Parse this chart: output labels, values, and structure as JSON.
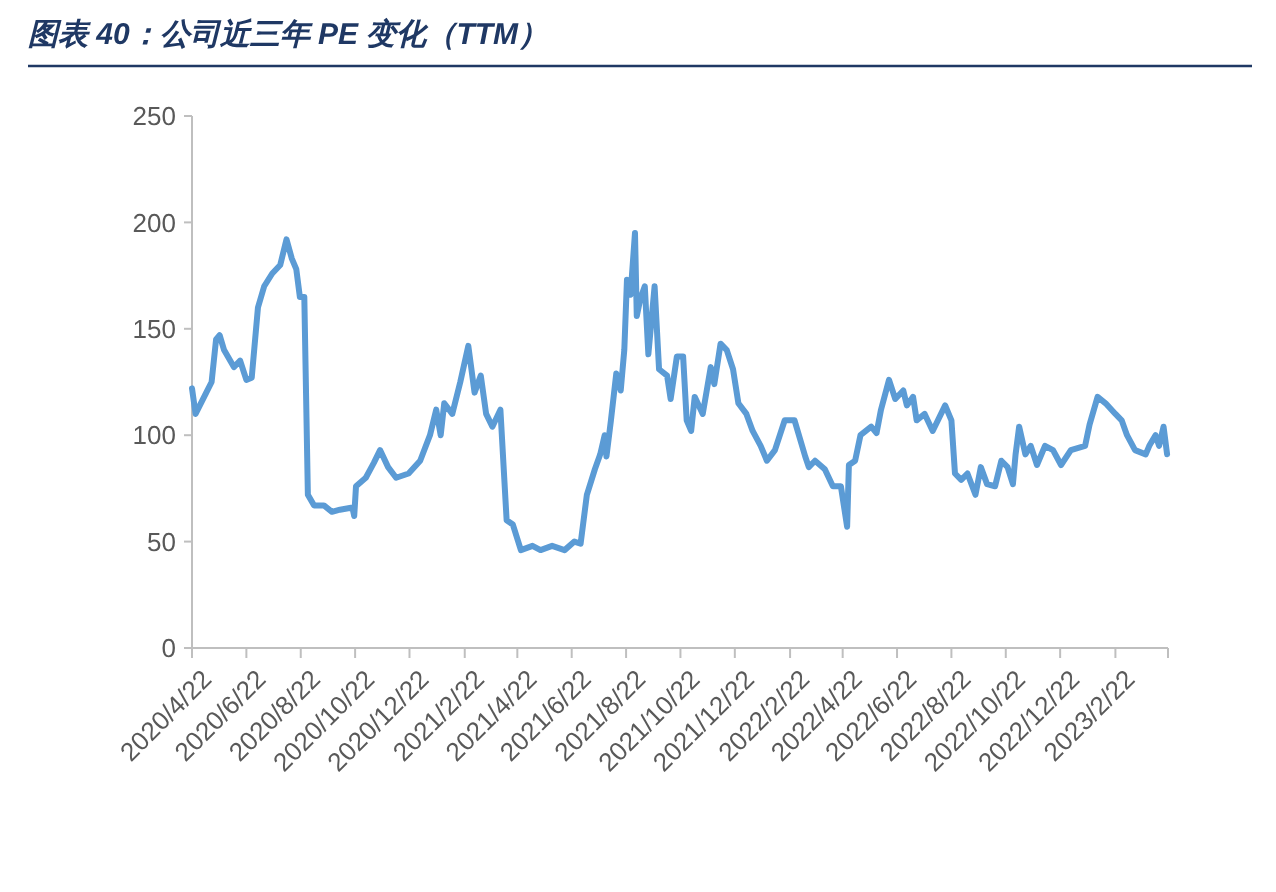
{
  "chart_data": {
    "type": "line",
    "title": "图表 40：公司近三年 PE 变化（TTM）",
    "x": [
      "2020-04-22",
      "2020-04-26",
      "2020-05-08",
      "2020-05-14",
      "2020-05-19",
      "2020-05-23",
      "2020-05-28",
      "2020-06-08",
      "2020-06-15",
      "2020-06-22",
      "2020-06-28",
      "2020-07-05",
      "2020-07-12",
      "2020-07-21",
      "2020-07-30",
      "2020-08-06",
      "2020-08-12",
      "2020-08-17",
      "2020-08-21",
      "2020-08-26",
      "2020-08-30",
      "2020-09-06",
      "2020-09-17",
      "2020-09-26",
      "2020-10-05",
      "2020-10-19",
      "2020-10-21",
      "2020-10-23",
      "2020-11-03",
      "2020-11-12",
      "2020-11-19",
      "2020-11-28",
      "2020-12-07",
      "2020-12-21",
      "2021-01-03",
      "2021-01-14",
      "2021-01-21",
      "2021-01-26",
      "2021-01-30",
      "2021-02-08",
      "2021-02-17",
      "2021-02-26",
      "2021-03-05",
      "2021-03-12",
      "2021-03-18",
      "2021-03-25",
      "2021-04-03",
      "2021-04-10",
      "2021-04-17",
      "2021-04-26",
      "2021-05-09",
      "2021-05-18",
      "2021-05-31",
      "2021-06-14",
      "2021-06-25",
      "2021-07-02",
      "2021-07-09",
      "2021-07-18",
      "2021-07-24",
      "2021-07-29",
      "2021-07-31",
      "2021-08-05",
      "2021-08-11",
      "2021-08-16",
      "2021-08-20",
      "2021-08-23",
      "2021-08-27",
      "2021-09-01",
      "2021-09-03",
      "2021-09-07",
      "2021-09-12",
      "2021-09-16",
      "2021-09-23",
      "2021-09-28",
      "2021-10-07",
      "2021-10-11",
      "2021-10-18",
      "2021-10-25",
      "2021-10-29",
      "2021-11-03",
      "2021-11-07",
      "2021-11-16",
      "2021-11-25",
      "2021-11-29",
      "2021-12-06",
      "2021-12-13",
      "2021-12-20",
      "2021-12-26",
      "2022-01-04",
      "2022-01-11",
      "2022-01-20",
      "2022-01-27",
      "2022-02-05",
      "2022-02-16",
      "2022-02-27",
      "2022-03-11",
      "2022-03-15",
      "2022-03-22",
      "2022-04-02",
      "2022-04-11",
      "2022-04-20",
      "2022-04-27",
      "2022-04-29",
      "2022-05-06",
      "2022-05-12",
      "2022-05-24",
      "2022-05-30",
      "2022-06-04",
      "2022-06-13",
      "2022-06-20",
      "2022-06-29",
      "2022-07-03",
      "2022-07-10",
      "2022-07-14",
      "2022-07-23",
      "2022-08-01",
      "2022-08-15",
      "2022-08-22",
      "2022-08-26",
      "2022-09-02",
      "2022-09-09",
      "2022-09-18",
      "2022-09-24",
      "2022-10-01",
      "2022-10-10",
      "2022-10-17",
      "2022-10-24",
      "2022-10-30",
      "2022-11-02",
      "2022-11-06",
      "2022-11-13",
      "2022-11-19",
      "2022-11-26",
      "2022-12-05",
      "2022-12-14",
      "2022-12-23",
      "2023-01-03",
      "2023-01-19",
      "2023-01-24",
      "2023-02-02",
      "2023-02-11",
      "2023-02-22",
      "2023-03-01",
      "2023-03-07",
      "2023-03-16",
      "2023-03-28",
      "2023-04-01",
      "2023-04-08",
      "2023-04-12",
      "2023-04-17",
      "2023-04-21"
    ],
    "series": [
      {
        "color": "#5b9bd5",
        "values": [
          122,
          110,
          120,
          125,
          145,
          147,
          140,
          132,
          135,
          126,
          127,
          160,
          170,
          176,
          180,
          192,
          183,
          178,
          165,
          165,
          72,
          67,
          67,
          64,
          65,
          66,
          62,
          76,
          80,
          87,
          93,
          85,
          80,
          82,
          88,
          100,
          112,
          100,
          115,
          110,
          125,
          142,
          120,
          128,
          110,
          104,
          112,
          60,
          58,
          46,
          48,
          46,
          48,
          46,
          50,
          49,
          72,
          84,
          91,
          100,
          90,
          107,
          129,
          121,
          140,
          173,
          166,
          195,
          156,
          164,
          170,
          138,
          170,
          131,
          128,
          117,
          137,
          137,
          107,
          102,
          118,
          110,
          132,
          124,
          143,
          140,
          131,
          115,
          110,
          102,
          95,
          88,
          93,
          107,
          107,
          90,
          85,
          88,
          84,
          76,
          76,
          57,
          86,
          88,
          100,
          104,
          101,
          112,
          126,
          117,
          121,
          114,
          118,
          107,
          110,
          102,
          114,
          107,
          82,
          79,
          82,
          72,
          85,
          77,
          76,
          88,
          85,
          77,
          91,
          104,
          91,
          95,
          86,
          95,
          93,
          86,
          93,
          95,
          105,
          118,
          115,
          110,
          107,
          100,
          93,
          91,
          95,
          100,
          95,
          104,
          91
        ]
      }
    ],
    "xlim": [
      "2020-04-22",
      "2023-04-22"
    ],
    "xticks": [
      {
        "value": "2020-04-22",
        "label": "2020/4/22"
      },
      {
        "value": "2020-06-22",
        "label": "2020/6/22"
      },
      {
        "value": "2020-08-22",
        "label": "2020/8/22"
      },
      {
        "value": "2020-10-22",
        "label": "2020/10/22"
      },
      {
        "value": "2020-12-22",
        "label": "2020/12/22"
      },
      {
        "value": "2021-02-22",
        "label": "2021/2/22"
      },
      {
        "value": "2021-04-22",
        "label": "2021/4/22"
      },
      {
        "value": "2021-06-22",
        "label": "2021/6/22"
      },
      {
        "value": "2021-08-22",
        "label": "2021/8/22"
      },
      {
        "value": "2021-10-22",
        "label": "2021/10/22"
      },
      {
        "value": "2021-12-22",
        "label": "2021/12/22"
      },
      {
        "value": "2022-02-22",
        "label": "2022/2/22"
      },
      {
        "value": "2022-04-22",
        "label": "2022/4/22"
      },
      {
        "value": "2022-06-22",
        "label": "2022/6/22"
      },
      {
        "value": "2022-08-22",
        "label": "2022/8/22"
      },
      {
        "value": "2022-10-22",
        "label": "2022/10/22"
      },
      {
        "value": "2022-12-22",
        "label": "2022/12/22"
      },
      {
        "value": "2023-02-22",
        "label": "2023/2/22"
      },
      {
        "value": "2023-04-22",
        "label": null
      }
    ],
    "ylim": [
      0,
      250
    ],
    "yticks": [
      0,
      50,
      100,
      150,
      200,
      250
    ],
    "marker": "none",
    "line_style": "solid"
  }
}
